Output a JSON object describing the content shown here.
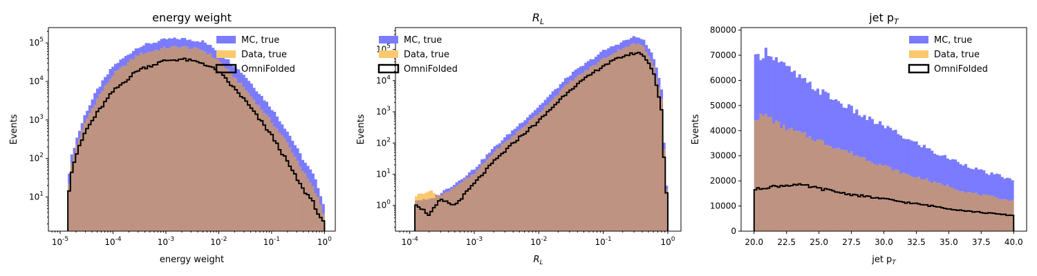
{
  "colors": {
    "mc": "#7b7bff",
    "data": "#fbc86e",
    "overlap": "#bf9381",
    "omni": "#000000"
  },
  "legend": {
    "mc_label": "MC, true",
    "data_label": "Data, true",
    "omni_label": "OmniFolded"
  },
  "chart_data": [
    {
      "type": "histogram",
      "title": "energy weight",
      "xlabel": "energy weight",
      "ylabel": "Events",
      "xscale": "log",
      "yscale": "log",
      "xlim": [
        6e-06,
        1.6
      ],
      "ylim": [
        1.3,
        250000
      ],
      "xticks": [
        {
          "v": 1e-05,
          "label": "10",
          "exp": "-5"
        },
        {
          "v": 0.0001,
          "label": "10",
          "exp": "-4"
        },
        {
          "v": 0.001,
          "label": "10",
          "exp": "-3"
        },
        {
          "v": 0.01,
          "label": "10",
          "exp": "-2"
        },
        {
          "v": 0.1,
          "label": "10",
          "exp": "-1"
        },
        {
          "v": 1,
          "label": "10",
          "exp": "0"
        }
      ],
      "yticks": [
        {
          "v": 10,
          "label": "10",
          "exp": "1"
        },
        {
          "v": 100,
          "label": "10",
          "exp": "2"
        },
        {
          "v": 1000,
          "label": "10",
          "exp": "3"
        },
        {
          "v": 10000,
          "label": "10",
          "exp": "4"
        },
        {
          "v": 100000,
          "label": "10",
          "exp": "5"
        }
      ],
      "legend_position": "top-right",
      "bin_range": [
        1.4e-05,
        1.0
      ],
      "series": [
        {
          "name": "MC, true",
          "points": [
            [
              1.4e-05,
              25
            ],
            [
              1.6e-05,
              100
            ],
            [
              2e-05,
              300
            ],
            [
              3e-05,
              1500
            ],
            [
              5e-05,
              6000
            ],
            [
              0.0001,
              25000
            ],
            [
              0.0003,
              80000
            ],
            [
              0.001,
              125000
            ],
            [
              0.002,
              130000
            ],
            [
              0.005,
              110000
            ],
            [
              0.01,
              60000
            ],
            [
              0.03,
              15000
            ],
            [
              0.1,
              2000
            ],
            [
              0.2,
              500
            ],
            [
              0.4,
              90
            ],
            [
              0.6,
              40
            ],
            [
              0.8,
              15
            ],
            [
              1.0,
              5
            ]
          ]
        },
        {
          "name": "Data, true",
          "points": [
            [
              1.4e-05,
              12
            ],
            [
              1.6e-05,
              60
            ],
            [
              2e-05,
              200
            ],
            [
              3e-05,
              900
            ],
            [
              5e-05,
              3500
            ],
            [
              0.0001,
              15000
            ],
            [
              0.0003,
              50000
            ],
            [
              0.001,
              75000
            ],
            [
              0.002,
              80000
            ],
            [
              0.005,
              65000
            ],
            [
              0.01,
              35000
            ],
            [
              0.03,
              7000
            ],
            [
              0.1,
              900
            ],
            [
              0.2,
              250
            ],
            [
              0.4,
              45
            ],
            [
              0.6,
              18
            ],
            [
              0.8,
              8
            ],
            [
              1.0,
              3
            ]
          ]
        },
        {
          "name": "OmniFolded",
          "points": [
            [
              1.4e-05,
              8
            ],
            [
              1.6e-05,
              40
            ],
            [
              2e-05,
              120
            ],
            [
              3e-05,
              500
            ],
            [
              5e-05,
              1500
            ],
            [
              0.0001,
              5500
            ],
            [
              0.0003,
              20000
            ],
            [
              0.001,
              35000
            ],
            [
              0.002,
              38000
            ],
            [
              0.005,
              30000
            ],
            [
              0.01,
              18000
            ],
            [
              0.03,
              3500
            ],
            [
              0.1,
              400
            ],
            [
              0.2,
              80
            ],
            [
              0.4,
              15
            ],
            [
              0.6,
              8
            ],
            [
              0.8,
              3
            ],
            [
              1.0,
              2
            ]
          ]
        }
      ]
    },
    {
      "type": "histogram",
      "title": "R",
      "title_sub": "L",
      "xlabel": "R",
      "xlabel_sub": "L",
      "ylabel": "Events",
      "xscale": "log",
      "yscale": "log",
      "xlim": [
        6e-05,
        1.6
      ],
      "ylim": [
        0.15,
        500000
      ],
      "xticks": [
        {
          "v": 0.0001,
          "label": "10",
          "exp": "-4"
        },
        {
          "v": 0.001,
          "label": "10",
          "exp": "-3"
        },
        {
          "v": 0.01,
          "label": "10",
          "exp": "-2"
        },
        {
          "v": 0.1,
          "label": "10",
          "exp": "-1"
        },
        {
          "v": 1,
          "label": "10",
          "exp": "0"
        }
      ],
      "yticks": [
        {
          "v": 1,
          "label": "10",
          "exp": "0"
        },
        {
          "v": 10,
          "label": "10",
          "exp": "1"
        },
        {
          "v": 100,
          "label": "10",
          "exp": "2"
        },
        {
          "v": 1000,
          "label": "10",
          "exp": "3"
        },
        {
          "v": 10000,
          "label": "10",
          "exp": "4"
        },
        {
          "v": 100000,
          "label": "10",
          "exp": "5"
        }
      ],
      "legend_position": "top-left",
      "bin_range": [
        0.00012,
        1.0
      ],
      "series": [
        {
          "name": "MC, true",
          "points": [
            [
              0.00012,
              1.5
            ],
            [
              0.0002,
              1.5
            ],
            [
              0.0003,
              2.5
            ],
            [
              0.0005,
              5
            ],
            [
              0.001,
              15
            ],
            [
              0.002,
              70
            ],
            [
              0.005,
              400
            ],
            [
              0.01,
              1500
            ],
            [
              0.03,
              15000
            ],
            [
              0.1,
              90000
            ],
            [
              0.2,
              180000
            ],
            [
              0.3,
              250000
            ],
            [
              0.4,
              230000
            ],
            [
              0.6,
              60000
            ],
            [
              0.8,
              5000
            ],
            [
              0.9,
              30
            ],
            [
              1.0,
              1
            ]
          ]
        },
        {
          "name": "Data, true",
          "points": [
            [
              0.00012,
              2
            ],
            [
              0.0002,
              3
            ],
            [
              0.0003,
              2
            ],
            [
              0.0005,
              4
            ],
            [
              0.001,
              10
            ],
            [
              0.002,
              50
            ],
            [
              0.005,
              250
            ],
            [
              0.01,
              900
            ],
            [
              0.03,
              9000
            ],
            [
              0.1,
              50000
            ],
            [
              0.2,
              110000
            ],
            [
              0.3,
              150000
            ],
            [
              0.4,
              140000
            ],
            [
              0.6,
              35000
            ],
            [
              0.8,
              2500
            ],
            [
              0.9,
              20
            ],
            [
              1.0,
              0.8
            ]
          ]
        },
        {
          "name": "OmniFolded",
          "points": [
            [
              0.00012,
              1.2
            ],
            [
              0.0002,
              0.5
            ],
            [
              0.0003,
              1.5
            ],
            [
              0.0005,
              1
            ],
            [
              0.001,
              5
            ],
            [
              0.002,
              25
            ],
            [
              0.005,
              150
            ],
            [
              0.01,
              500
            ],
            [
              0.03,
              5000
            ],
            [
              0.1,
              30000
            ],
            [
              0.2,
              60000
            ],
            [
              0.3,
              75000
            ],
            [
              0.4,
              75000
            ],
            [
              0.6,
              20000
            ],
            [
              0.8,
              1200
            ],
            [
              0.9,
              10
            ],
            [
              1.0,
              0.8
            ]
          ]
        }
      ]
    },
    {
      "type": "histogram",
      "title": "jet p",
      "title_sub": "T",
      "xlabel": "jet p",
      "xlabel_sub": "T",
      "ylabel": "Events",
      "xscale": "linear",
      "yscale": "linear",
      "xlim": [
        19,
        41
      ],
      "ylim": [
        0,
        81000
      ],
      "xticks": [
        {
          "v": 20,
          "label": "20.0"
        },
        {
          "v": 22.5,
          "label": "22.5"
        },
        {
          "v": 25,
          "label": "25.0"
        },
        {
          "v": 27.5,
          "label": "27.5"
        },
        {
          "v": 30,
          "label": "30.0"
        },
        {
          "v": 32.5,
          "label": "32.5"
        },
        {
          "v": 35,
          "label": "35.0"
        },
        {
          "v": 37.5,
          "label": "37.5"
        },
        {
          "v": 40,
          "label": "40.0"
        }
      ],
      "yticks": [
        {
          "v": 0,
          "label": "0"
        },
        {
          "v": 10000,
          "label": "10000"
        },
        {
          "v": 20000,
          "label": "20000"
        },
        {
          "v": 30000,
          "label": "30000"
        },
        {
          "v": 40000,
          "label": "40000"
        },
        {
          "v": 50000,
          "label": "50000"
        },
        {
          "v": 60000,
          "label": "60000"
        },
        {
          "v": 70000,
          "label": "70000"
        },
        {
          "v": 80000,
          "label": "80000"
        }
      ],
      "legend_position": "top-right",
      "bin_range": [
        20,
        40
      ],
      "series": [
        {
          "name": "MC, true",
          "points": [
            [
              20,
              68000
            ],
            [
              21,
              72000
            ],
            [
              22,
              67000
            ],
            [
              23,
              63000
            ],
            [
              24,
              59000
            ],
            [
              25,
              56000
            ],
            [
              26,
              53000
            ],
            [
              27,
              50000
            ],
            [
              28,
              47000
            ],
            [
              29,
              44000
            ],
            [
              30,
              42000
            ],
            [
              31,
              39000
            ],
            [
              32,
              36000
            ],
            [
              33,
              34000
            ],
            [
              34,
              31000
            ],
            [
              35,
              29000
            ],
            [
              36,
              27000
            ],
            [
              37,
              25000
            ],
            [
              38,
              23000
            ],
            [
              39,
              22000
            ],
            [
              40,
              20000
            ]
          ]
        },
        {
          "name": "Data, true",
          "points": [
            [
              20,
              45000
            ],
            [
              21,
              46000
            ],
            [
              22,
              42000
            ],
            [
              23,
              40000
            ],
            [
              24,
              38000
            ],
            [
              25,
              36000
            ],
            [
              26,
              34000
            ],
            [
              27,
              32000
            ],
            [
              28,
              30000
            ],
            [
              29,
              28000
            ],
            [
              30,
              26000
            ],
            [
              31,
              24000
            ],
            [
              32,
              22000
            ],
            [
              33,
              21000
            ],
            [
              34,
              19000
            ],
            [
              35,
              18000
            ],
            [
              36,
              16000
            ],
            [
              37,
              15000
            ],
            [
              38,
              14000
            ],
            [
              39,
              13000
            ],
            [
              40,
              12000
            ]
          ]
        },
        {
          "name": "OmniFolded",
          "points": [
            [
              20,
              16500
            ],
            [
              21,
              17500
            ],
            [
              22,
              18000
            ],
            [
              23,
              18500
            ],
            [
              24,
              18000
            ],
            [
              25,
              17000
            ],
            [
              26,
              16000
            ],
            [
              27,
              15000
            ],
            [
              28,
              14200
            ],
            [
              29,
              13500
            ],
            [
              30,
              12800
            ],
            [
              31,
              12000
            ],
            [
              32,
              11200
            ],
            [
              33,
              10500
            ],
            [
              34,
              9800
            ],
            [
              35,
              9000
            ],
            [
              36,
              8300
            ],
            [
              37,
              7700
            ],
            [
              38,
              7200
            ],
            [
              39,
              6700
            ],
            [
              40,
              6200
            ]
          ]
        }
      ]
    }
  ]
}
